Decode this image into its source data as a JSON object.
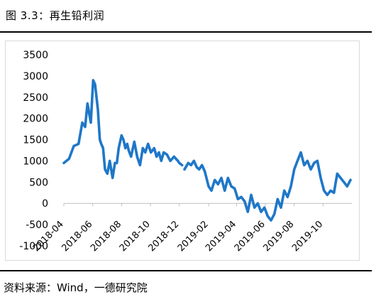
{
  "header": {
    "title": "图 3.3：再生铅利润"
  },
  "footer": {
    "source": "资料来源：Wind，一德研究院"
  },
  "chart_data": {
    "type": "line",
    "title": "图 3.3：再生铅利润",
    "xlabel": "",
    "ylabel": "",
    "ylim": [
      -1000,
      3500
    ],
    "yticks": [
      "3500",
      "3000",
      "2500",
      "2000",
      "1500",
      "1000",
      "500",
      "0",
      "-500",
      "-1000"
    ],
    "xticks": [
      "2018-04",
      "2018-06",
      "2018-08",
      "2018-10",
      "2018-12",
      "2019-02",
      "2019-04",
      "2019-06",
      "2019-08",
      "2019-10"
    ],
    "xlim": [
      "2018-04",
      "2019-12"
    ],
    "grid": false,
    "legend": "none",
    "line_color": "#1f77c8",
    "series": [
      {
        "x": [
          "2018-04-01",
          "2018-04-12",
          "2018-04-22",
          "2018-05-02",
          "2018-05-10",
          "2018-05-16",
          "2018-05-21",
          "2018-05-28",
          "2018-06-02",
          "2018-06-06",
          "2018-06-12",
          "2018-06-16",
          "2018-06-19",
          "2018-06-23",
          "2018-06-27",
          "2018-07-02",
          "2018-07-07",
          "2018-07-13",
          "2018-07-18",
          "2018-07-22",
          "2018-07-26",
          "2018-08-01",
          "2018-08-05",
          "2018-08-09",
          "2018-08-13",
          "2018-08-16",
          "2018-08-21",
          "2018-08-28",
          "2018-09-03",
          "2018-09-09",
          "2018-09-15",
          "2018-09-20",
          "2018-09-26",
          "2018-10-02",
          "2018-10-09",
          "2018-10-14",
          "2018-10-19",
          "2018-10-24",
          "2018-10-29",
          "2018-11-05",
          "2018-11-12",
          "2018-11-20",
          "2018-11-28",
          "2018-12-01",
          "2018-12-07"
        ],
        "values": [
          950,
          1050,
          1350,
          1400,
          1900,
          1800,
          2350,
          1900,
          2900,
          2800,
          2200,
          1500,
          1400,
          1300,
          800,
          700,
          1000,
          600,
          950,
          950,
          1300,
          1600,
          1500,
          1300,
          1400,
          1250,
          1100,
          1450,
          1100,
          900,
          1300,
          1200,
          1400,
          1200,
          1300,
          1100,
          1200,
          1000,
          1200,
          1150,
          1000,
          1100,
          1000,
          950,
          900
        ],
        "gap_after_index": 44
      },
      {
        "x": [
          "2018-12-12",
          "2018-12-20",
          "2018-12-26",
          "2019-01-01",
          "2019-01-07",
          "2019-01-12",
          "2019-01-18",
          "2019-01-24",
          "2019-02-01",
          "2019-02-07",
          "2019-02-14",
          "2019-02-21",
          "2019-02-28",
          "2019-03-07",
          "2019-03-14",
          "2019-03-21",
          "2019-03-28",
          "2019-04-04",
          "2019-04-11",
          "2019-04-18",
          "2019-04-25",
          "2019-05-02",
          "2019-05-09",
          "2019-05-16",
          "2019-05-23",
          "2019-05-30",
          "2019-06-06",
          "2019-06-13",
          "2019-06-20",
          "2019-06-27",
          "2019-07-04",
          "2019-07-11",
          "2019-07-18",
          "2019-07-25",
          "2019-08-01",
          "2019-08-08",
          "2019-08-15",
          "2019-08-22",
          "2019-08-29",
          "2019-09-05",
          "2019-09-12",
          "2019-09-19",
          "2019-09-26",
          "2019-10-03",
          "2019-10-10",
          "2019-10-17",
          "2019-10-24",
          "2019-10-31",
          "2019-11-07",
          "2019-11-14",
          "2019-11-21",
          "2019-11-28"
        ],
        "values": [
          800,
          950,
          900,
          1000,
          850,
          800,
          900,
          750,
          400,
          300,
          550,
          450,
          600,
          300,
          600,
          400,
          350,
          100,
          150,
          50,
          -200,
          200,
          -100,
          0,
          -200,
          -100,
          -300,
          -400,
          -250,
          100,
          -100,
          300,
          150,
          400,
          800,
          1000,
          1200,
          900,
          1000,
          800,
          950,
          1000,
          600,
          300,
          200,
          300,
          250,
          700,
          600,
          500,
          400,
          550
        ]
      }
    ]
  }
}
